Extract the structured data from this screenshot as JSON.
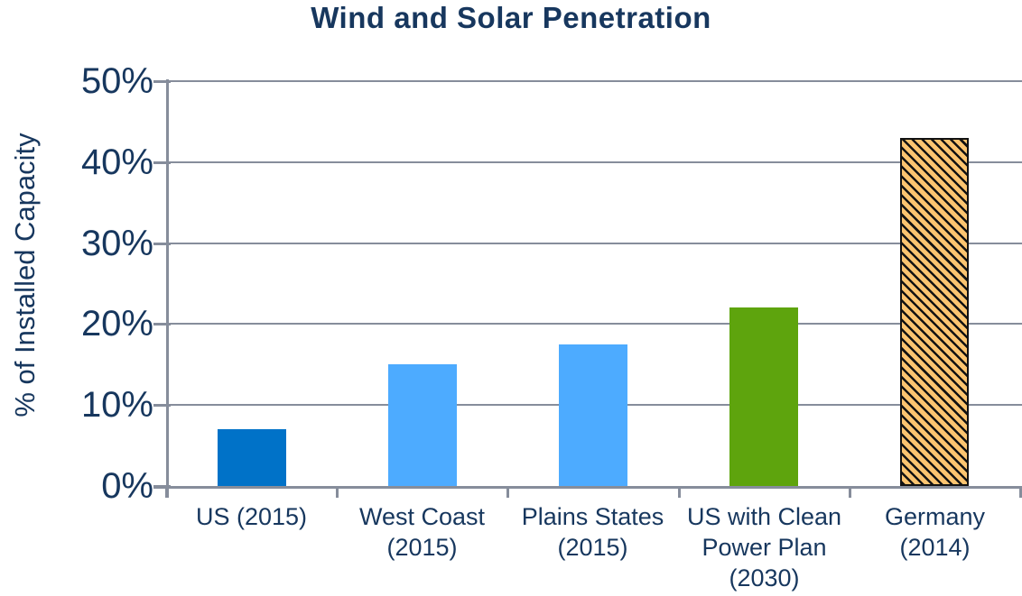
{
  "chart_data": {
    "type": "bar",
    "title": "Wind and Solar Penetration",
    "xlabel": "",
    "ylabel": "% of Installed Capacity",
    "ylim": [
      0,
      50
    ],
    "yticks": [
      0,
      10,
      20,
      30,
      40,
      50
    ],
    "ytick_suffix": "%",
    "grid": true,
    "legend_position": "none",
    "categories": [
      "US (2015)",
      "West Coast\n(2015)",
      "Plains States\n(2015)",
      "US with Clean\nPower Plan\n(2030)",
      "Germany\n(2014)"
    ],
    "values": [
      7,
      15,
      17.5,
      22,
      43
    ],
    "bar_styles": [
      {
        "fill": "#0072C8",
        "hatch": false
      },
      {
        "fill": "#4DABFF",
        "hatch": false
      },
      {
        "fill": "#4DABFF",
        "hatch": false
      },
      {
        "fill": "#5EA40D",
        "hatch": false
      },
      {
        "fill": "#FBC470",
        "hatch": true,
        "hatch_pattern": "diagonal-backslash",
        "hatch_color": "#121212"
      }
    ]
  },
  "styles": {
    "text_color": "#17375E",
    "axis_color": "#868D9B",
    "background": "#FFFFFF"
  }
}
